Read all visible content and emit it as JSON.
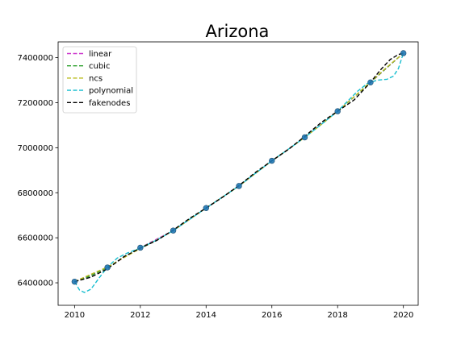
{
  "chart_data": {
    "type": "line",
    "title": "Arizona",
    "xlabel": "",
    "ylabel": "",
    "xlim": [
      2009.5,
      2020.45
    ],
    "ylim": [
      6300000,
      7470000
    ],
    "x_ticks": [
      2010,
      2012,
      2014,
      2016,
      2018,
      2020
    ],
    "x_tick_labels": [
      "2010",
      "2012",
      "2014",
      "2016",
      "2018",
      "2020"
    ],
    "y_ticks": [
      6400000,
      6600000,
      6800000,
      7000000,
      7200000,
      7400000
    ],
    "y_tick_labels": [
      "6400000",
      "6600000",
      "6800000",
      "7000000",
      "7200000",
      "7400000"
    ],
    "grid": false,
    "legend_position": "top-left",
    "data_points": {
      "x": [
        2010,
        2011,
        2012,
        2013,
        2014,
        2015,
        2016,
        2017,
        2018,
        2019,
        2020
      ],
      "y": [
        6405000,
        6468000,
        6556000,
        6632000,
        6732000,
        6830000,
        6942000,
        7046000,
        7162000,
        7290000,
        7420000
      ],
      "color": "#1f77b4"
    },
    "series": [
      {
        "name": "linear",
        "color": "#cc33cc",
        "x": [
          2010,
          2011,
          2012,
          2013,
          2014,
          2015,
          2016,
          2017,
          2018,
          2019,
          2020
        ],
        "y": [
          6405000,
          6468000,
          6556000,
          6632000,
          6732000,
          6830000,
          6942000,
          7046000,
          7162000,
          7290000,
          7420000
        ]
      },
      {
        "name": "cubic",
        "color": "#2ca02c",
        "x": [
          2010,
          2010.5,
          2011,
          2011.5,
          2012,
          2012.5,
          2013,
          2013.5,
          2014,
          2014.5,
          2015,
          2015.5,
          2016,
          2016.5,
          2017,
          2017.5,
          2018,
          2018.5,
          2019,
          2019.5,
          2020
        ],
        "y": [
          6405000,
          6432000,
          6468000,
          6513000,
          6556000,
          6590000,
          6632000,
          6682000,
          6732000,
          6780000,
          6830000,
          6886000,
          6942000,
          6993000,
          7046000,
          7103000,
          7162000,
          7225000,
          7290000,
          7356000,
          7420000
        ]
      },
      {
        "name": "ncs",
        "color": "#bcbd22",
        "x": [
          2010,
          2010.5,
          2011,
          2011.5,
          2012,
          2012.5,
          2013,
          2013.5,
          2014,
          2014.5,
          2015,
          2015.5,
          2016,
          2016.5,
          2017,
          2017.5,
          2018,
          2018.5,
          2019,
          2019.5,
          2020
        ],
        "y": [
          6405000,
          6438000,
          6470000,
          6512000,
          6552000,
          6590000,
          6632000,
          6682000,
          6732000,
          6781000,
          6830000,
          6886000,
          6942000,
          6993000,
          7046000,
          7103000,
          7162000,
          7226000,
          7292000,
          7358000,
          7420000
        ]
      },
      {
        "name": "polynomial",
        "color": "#17becf",
        "x": [
          2010,
          2010.15,
          2010.3,
          2010.5,
          2010.75,
          2011,
          2011.3,
          2011.6,
          2012,
          2012.5,
          2013,
          2013.5,
          2014,
          2014.5,
          2015,
          2015.5,
          2016,
          2016.5,
          2017,
          2017.5,
          2018,
          2018.3,
          2018.6,
          2018.9,
          2019.2,
          2019.5,
          2019.7,
          2019.85,
          2020
        ],
        "y": [
          6405000,
          6368000,
          6357000,
          6372000,
          6422000,
          6470000,
          6510000,
          6532000,
          6554000,
          6590000,
          6632000,
          6682000,
          6732000,
          6781000,
          6830000,
          6886000,
          6942000,
          6993000,
          7046000,
          7103000,
          7162000,
          7206000,
          7250000,
          7285000,
          7300000,
          7304000,
          7318000,
          7352000,
          7420000
        ]
      },
      {
        "name": "fakenodes",
        "color": "#000000",
        "x": [
          2010,
          2010.5,
          2011,
          2011.5,
          2012,
          2012.5,
          2013,
          2013.5,
          2014,
          2014.5,
          2015,
          2015.5,
          2016,
          2016.5,
          2017,
          2017.5,
          2018,
          2018.5,
          2019,
          2019.3,
          2019.6,
          2019.85,
          2020
        ],
        "y": [
          6405000,
          6425000,
          6462000,
          6516000,
          6554000,
          6588000,
          6634000,
          6686000,
          6732000,
          6780000,
          6832000,
          6890000,
          6942000,
          6992000,
          7050000,
          7112000,
          7162000,
          7212000,
          7290000,
          7345000,
          7392000,
          7414000,
          7420000
        ]
      }
    ]
  }
}
